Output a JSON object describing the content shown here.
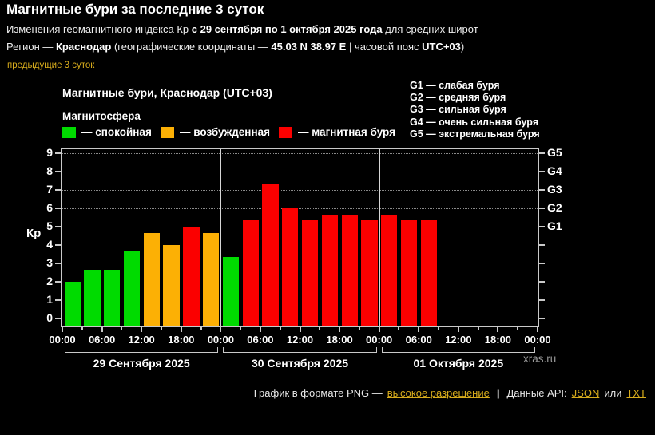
{
  "header": {
    "title": "Магнитные бури за последние 3 суток",
    "subtitle": {
      "t1": "Изменения геомагнитного индекса Кр ",
      "b1": "с 29 сентября по 1 октября 2025 года",
      "t2": " для средних широт"
    },
    "region": {
      "t1": "Регион — ",
      "b1": "Краснодар",
      "t2": " (географические координаты — ",
      "b2": "45.03 N 38.97 E",
      "t3": " | часовой пояс ",
      "b3": "UTC+03",
      "t4": ")"
    },
    "prev_link": "предыдущие 3 суток"
  },
  "chart": {
    "title": "Магнитные бури, Краснодар (UTC+03)",
    "legend_title": "Магнитосфера",
    "legend": [
      {
        "state": "quiet",
        "label": "— спокойная"
      },
      {
        "state": "excited",
        "label": "— возбужденная"
      },
      {
        "state": "storm",
        "label": "— магнитная буря"
      }
    ],
    "g_legend": [
      "G1 — слабая буря",
      "G2 — средняя буря",
      "G3 — сильная буря",
      "G4 — очень сильная буря",
      "G5 — экстремальная буря"
    ],
    "watermark": "xras.ru"
  },
  "chart_data": {
    "type": "bar",
    "title": "Магнитные бури, Краснодар (UTC+03)",
    "ylabel": "Кр",
    "ylim": [
      0,
      9
    ],
    "yticks": [
      0,
      1,
      2,
      3,
      4,
      5,
      6,
      7,
      8,
      9
    ],
    "gridlines_at": [
      5,
      6,
      7,
      8,
      9
    ],
    "right_axis": [
      {
        "kp": 5,
        "label": "G1"
      },
      {
        "kp": 6,
        "label": "G2"
      },
      {
        "kp": 7,
        "label": "G3"
      },
      {
        "kp": 8,
        "label": "G4"
      },
      {
        "kp": 9,
        "label": "G5"
      }
    ],
    "x_tick_labels": [
      "00:00",
      "06:00",
      "12:00",
      "18:00",
      "00:00",
      "06:00",
      "12:00",
      "18:00",
      "00:00",
      "06:00",
      "12:00",
      "18:00",
      "00:00"
    ],
    "bar_interval_hours": 3,
    "state_colors": {
      "quiet": "#00db00",
      "excited": "#fcb005",
      "storm": "#fb0000"
    },
    "days": [
      {
        "date": "29 Сентября 2025",
        "kp": [
          2.0,
          2.67,
          2.67,
          3.67,
          4.67,
          4.0,
          5.0,
          4.67
        ],
        "states": [
          "quiet",
          "quiet",
          "quiet",
          "quiet",
          "excited",
          "excited",
          "storm",
          "excited"
        ]
      },
      {
        "date": "30 Сентября 2025",
        "kp": [
          3.33,
          5.33,
          7.33,
          6.0,
          5.33,
          5.67,
          5.67,
          5.33
        ],
        "states": [
          "quiet",
          "storm",
          "storm",
          "storm",
          "storm",
          "storm",
          "storm",
          "storm"
        ]
      },
      {
        "date": "01 Октября 2025",
        "kp": [
          5.67,
          5.33,
          5.33
        ],
        "states": [
          "storm",
          "storm",
          "storm"
        ]
      }
    ]
  },
  "footer": {
    "png_text": "График в формате PNG —",
    "png_link": "высокое разрешение",
    "separator": "|",
    "api_text": "Данные API:",
    "json_link": "JSON",
    "or_text": "или",
    "txt_link": "TXT"
  },
  "colors": {
    "background": "#000000",
    "text": "#ffffff",
    "link": "#d8ac1c",
    "muted": "#9a9a9a",
    "frame": "#c9c9c9",
    "grid": "#8a8a8a",
    "quiet_green": "#00db00",
    "excited_orange": "#fcb005",
    "storm_red": "#fb0000"
  }
}
